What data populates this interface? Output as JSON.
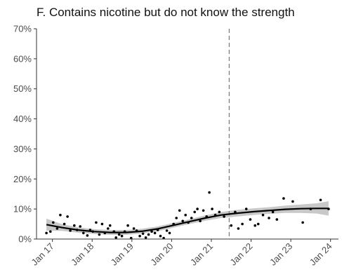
{
  "chart_data": {
    "type": "scatter",
    "title": "F. Contains nicotine but do not know the strength",
    "xlabel": "",
    "ylabel": "",
    "x_range": [
      2016.6,
      2024.2
    ],
    "ylim": [
      0,
      70
    ],
    "y_ticks": [
      0,
      10,
      20,
      30,
      40,
      50,
      60,
      70
    ],
    "y_tick_labels": [
      "0%",
      "10%",
      "20%",
      "30%",
      "40%",
      "50%",
      "60%",
      "70%"
    ],
    "x_ticks": [
      2017,
      2018,
      2019,
      2020,
      2021,
      2022,
      2023,
      2024
    ],
    "x_tick_labels": [
      "Jan 17",
      "Jan 18",
      "Jan 19",
      "Jan 20",
      "Jan 21",
      "Jan 22",
      "Jan 23",
      "Jan 24"
    ],
    "grid": false,
    "vline_x": 2021.45,
    "points": [
      [
        2016.85,
        2.0
      ],
      [
        2016.95,
        2.5
      ],
      [
        2017.02,
        5.5
      ],
      [
        2017.12,
        3.5
      ],
      [
        2017.2,
        8.0
      ],
      [
        2017.3,
        5.0
      ],
      [
        2017.38,
        7.5
      ],
      [
        2017.45,
        2.8
      ],
      [
        2017.55,
        4.5
      ],
      [
        2017.62,
        3.0
      ],
      [
        2017.7,
        4.2
      ],
      [
        2017.78,
        2.0
      ],
      [
        2017.88,
        1.2
      ],
      [
        2017.95,
        3.0
      ],
      [
        2018.02,
        2.5
      ],
      [
        2018.1,
        5.5
      ],
      [
        2018.18,
        1.5
      ],
      [
        2018.25,
        5.0
      ],
      [
        2018.32,
        2.0
      ],
      [
        2018.4,
        3.5
      ],
      [
        2018.45,
        4.5
      ],
      [
        2018.55,
        2.5
      ],
      [
        2018.6,
        0.5
      ],
      [
        2018.68,
        1.5
      ],
      [
        2018.75,
        1.0
      ],
      [
        2018.82,
        2.5
      ],
      [
        2018.9,
        4.5
      ],
      [
        2018.98,
        0.3
      ],
      [
        2019.05,
        3.5
      ],
      [
        2019.12,
        2.8
      ],
      [
        2019.2,
        1.0
      ],
      [
        2019.28,
        1.8
      ],
      [
        2019.35,
        0.5
      ],
      [
        2019.42,
        1.5
      ],
      [
        2019.5,
        2.5
      ],
      [
        2019.58,
        2.0
      ],
      [
        2019.65,
        3.0
      ],
      [
        2019.72,
        1.0
      ],
      [
        2019.8,
        0.3
      ],
      [
        2019.88,
        2.8
      ],
      [
        2019.95,
        2.0
      ],
      [
        2020.05,
        5.0
      ],
      [
        2020.12,
        7.0
      ],
      [
        2020.2,
        9.5
      ],
      [
        2020.28,
        6.0
      ],
      [
        2020.35,
        8.0
      ],
      [
        2020.42,
        5.5
      ],
      [
        2020.5,
        7.0
      ],
      [
        2020.58,
        9.0
      ],
      [
        2020.65,
        10.0
      ],
      [
        2020.72,
        6.0
      ],
      [
        2020.8,
        9.5
      ],
      [
        2020.88,
        7.5
      ],
      [
        2020.95,
        15.5
      ],
      [
        2021.02,
        10.0
      ],
      [
        2021.1,
        8.0
      ],
      [
        2021.2,
        9.0
      ],
      [
        2021.32,
        7.5
      ],
      [
        2021.5,
        4.5
      ],
      [
        2021.6,
        9.0
      ],
      [
        2021.68,
        3.5
      ],
      [
        2021.78,
        5.0
      ],
      [
        2021.88,
        10.0
      ],
      [
        2021.98,
        6.5
      ],
      [
        2022.1,
        4.5
      ],
      [
        2022.18,
        5.0
      ],
      [
        2022.3,
        8.0
      ],
      [
        2022.45,
        7.0
      ],
      [
        2022.55,
        9.0
      ],
      [
        2022.65,
        6.5
      ],
      [
        2022.82,
        13.5
      ],
      [
        2023.05,
        12.5
      ],
      [
        2023.3,
        5.5
      ],
      [
        2023.5,
        10.0
      ],
      [
        2023.75,
        13.0
      ],
      [
        2023.95,
        10.0
      ]
    ],
    "trend": [
      [
        2016.85,
        4.8
      ],
      [
        2017.25,
        3.8
      ],
      [
        2017.65,
        3.0
      ],
      [
        2018.05,
        2.5
      ],
      [
        2018.45,
        2.2
      ],
      [
        2018.85,
        2.2
      ],
      [
        2019.25,
        2.6
      ],
      [
        2019.65,
        3.4
      ],
      [
        2020.05,
        4.6
      ],
      [
        2020.45,
        5.8
      ],
      [
        2020.85,
        7.0
      ],
      [
        2021.25,
        8.0
      ],
      [
        2021.65,
        8.6
      ],
      [
        2022.05,
        9.1
      ],
      [
        2022.45,
        9.5
      ],
      [
        2022.85,
        9.9
      ],
      [
        2023.25,
        10.1
      ],
      [
        2023.65,
        10.2
      ],
      [
        2023.95,
        10.2
      ]
    ],
    "band_lower": [
      [
        2016.85,
        2.8
      ],
      [
        2017.25,
        2.7
      ],
      [
        2017.65,
        2.1
      ],
      [
        2018.05,
        1.7
      ],
      [
        2018.45,
        1.4
      ],
      [
        2018.85,
        1.4
      ],
      [
        2019.25,
        1.8
      ],
      [
        2019.65,
        2.6
      ],
      [
        2020.05,
        3.8
      ],
      [
        2020.45,
        5.0
      ],
      [
        2020.85,
        6.1
      ],
      [
        2021.25,
        7.0
      ],
      [
        2021.65,
        7.5
      ],
      [
        2022.05,
        8.0
      ],
      [
        2022.45,
        8.4
      ],
      [
        2022.85,
        8.7
      ],
      [
        2023.25,
        8.7
      ],
      [
        2023.65,
        8.5
      ],
      [
        2023.95,
        7.8
      ]
    ],
    "band_upper": [
      [
        2016.85,
        6.8
      ],
      [
        2017.25,
        4.9
      ],
      [
        2017.65,
        3.9
      ],
      [
        2018.05,
        3.3
      ],
      [
        2018.45,
        3.0
      ],
      [
        2018.85,
        3.0
      ],
      [
        2019.25,
        3.4
      ],
      [
        2019.65,
        4.2
      ],
      [
        2020.05,
        5.4
      ],
      [
        2020.45,
        6.6
      ],
      [
        2020.85,
        7.9
      ],
      [
        2021.25,
        9.0
      ],
      [
        2021.65,
        9.7
      ],
      [
        2022.05,
        10.2
      ],
      [
        2022.45,
        10.6
      ],
      [
        2022.85,
        11.1
      ],
      [
        2023.25,
        11.5
      ],
      [
        2023.65,
        11.9
      ],
      [
        2023.95,
        12.6
      ]
    ],
    "colors": {
      "points": "#000000",
      "trend": "#000000",
      "band": "#c8c8c8",
      "vline": "#808080",
      "axis": "#333333",
      "tick_text": "#4d4d4d"
    }
  }
}
